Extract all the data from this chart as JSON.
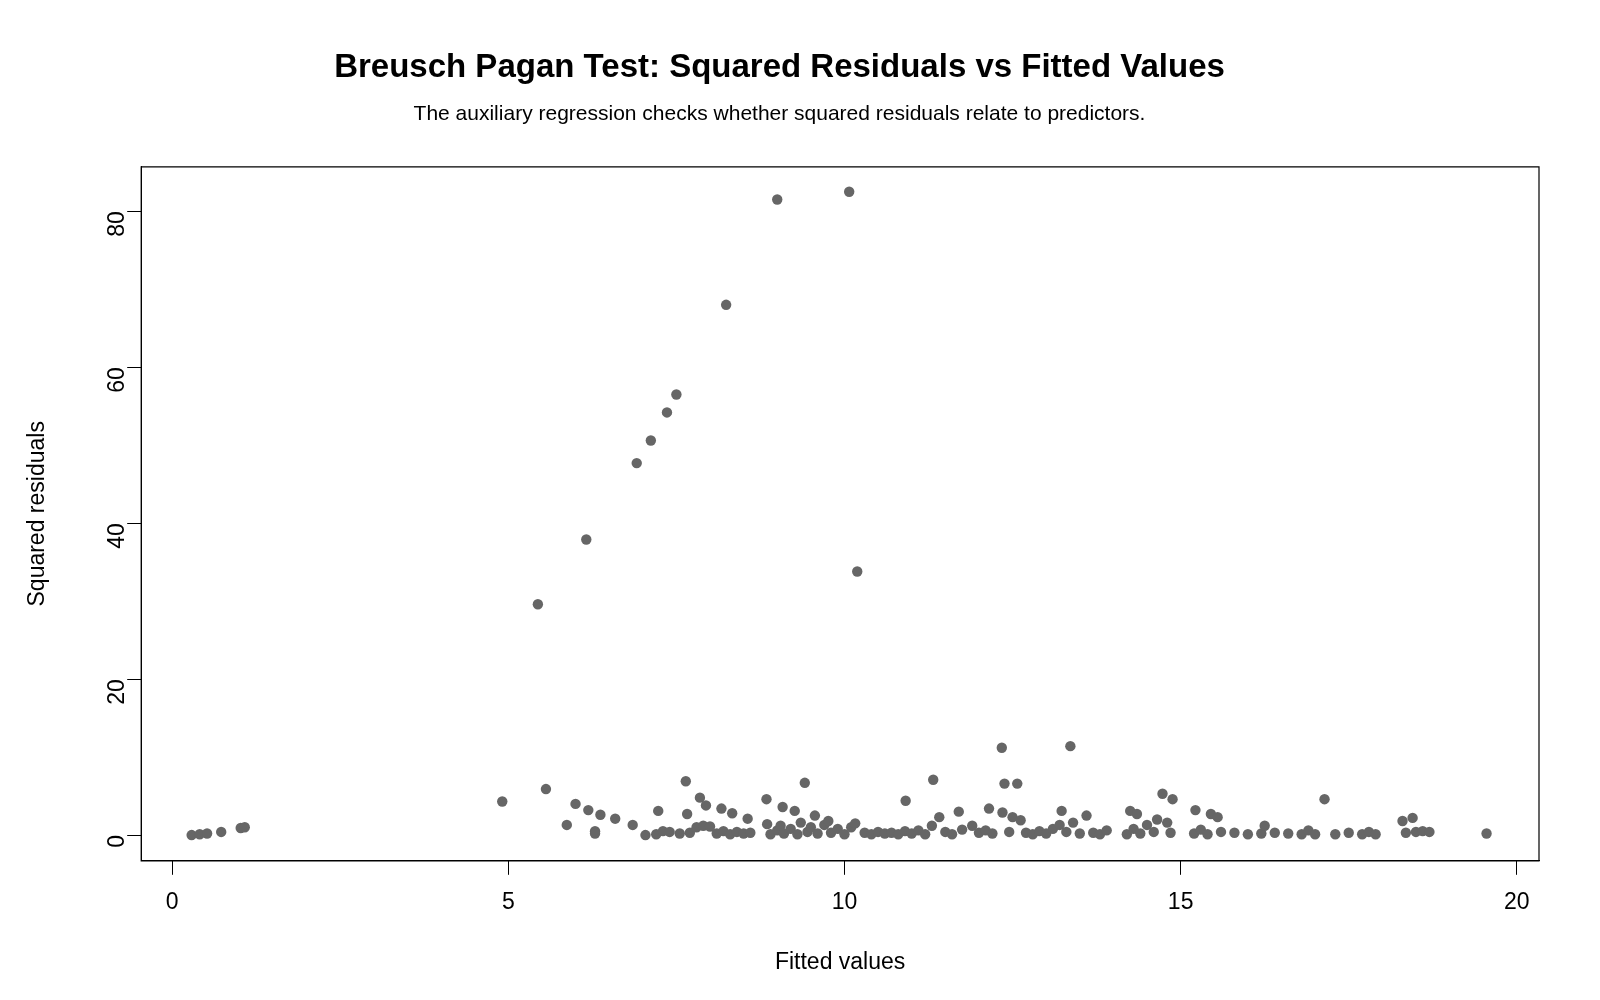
{
  "chart_data": {
    "type": "scatter",
    "title": "Breusch Pagan Test: Squared Residuals vs Fitted Values",
    "subtitle": "The auxiliary regression checks whether squared residuals relate to predictors.",
    "xlabel": "Fitted values",
    "ylabel": "Squared residuals",
    "xlim": [
      -0.46,
      20.33
    ],
    "xticks": [
      0,
      5,
      10,
      15,
      20
    ],
    "ylim": [
      -3.3,
      85.7
    ],
    "yticks": [
      0,
      20,
      40,
      60,
      80
    ],
    "grid": false,
    "legend": false,
    "marker": "circle",
    "series": [
      {
        "color": "#666666",
        "x": [
          0.29,
          0.41,
          0.52,
          0.73,
          1.02,
          1.08,
          4.91,
          5.44,
          5.56,
          5.87,
          6.0,
          6.16,
          6.19,
          6.29,
          6.29,
          6.37,
          6.59,
          6.85,
          6.91,
          7.04,
          7.12,
          7.23,
          7.2,
          7.3,
          7.36,
          7.4,
          7.5,
          7.55,
          7.64,
          7.66,
          7.7,
          7.8,
          7.85,
          7.9,
          7.94,
          8.0,
          8.1,
          8.17,
          8.2,
          8.24,
          8.3,
          8.33,
          8.4,
          8.5,
          8.56,
          8.6,
          8.84,
          8.85,
          8.9,
          9.0,
          9.0,
          9.05,
          9.08,
          9.1,
          9.2,
          9.26,
          9.3,
          9.35,
          9.41,
          9.45,
          9.5,
          9.56,
          9.6,
          9.7,
          9.76,
          9.8,
          9.9,
          10.0,
          10.07,
          10.1,
          10.16,
          10.19,
          10.3,
          10.4,
          10.5,
          10.6,
          10.7,
          10.8,
          10.91,
          10.9,
          11.0,
          11.1,
          11.2,
          11.3,
          11.32,
          11.41,
          11.5,
          11.6,
          11.7,
          11.75,
          11.9,
          12.0,
          12.1,
          12.15,
          12.2,
          12.34,
          12.35,
          12.38,
          12.45,
          12.5,
          12.57,
          12.62,
          12.7,
          12.8,
          12.9,
          13.0,
          13.1,
          13.2,
          13.23,
          13.3,
          13.36,
          13.4,
          13.5,
          13.6,
          13.7,
          13.8,
          13.9,
          14.2,
          14.25,
          14.3,
          14.35,
          14.4,
          14.5,
          14.6,
          14.65,
          14.73,
          14.8,
          14.85,
          14.88,
          15.2,
          15.22,
          15.3,
          15.4,
          15.45,
          15.55,
          15.6,
          15.8,
          16.0,
          16.2,
          16.25,
          16.4,
          16.6,
          16.8,
          16.9,
          17.0,
          17.14,
          17.3,
          17.5,
          17.7,
          17.8,
          17.9,
          18.3,
          18.35,
          18.45,
          18.5,
          18.6,
          18.7,
          19.55
        ],
        "values": [
          0,
          0.1,
          0.2,
          0.4,
          0.9,
          1.0,
          4.3,
          29.6,
          5.9,
          1.3,
          4.0,
          37.9,
          3.2,
          0.5,
          0.2,
          2.6,
          2.1,
          1.3,
          47.7,
          0,
          50.6,
          3.1,
          0.1,
          0.5,
          54.2,
          0.4,
          56.5,
          0.2,
          6.9,
          2.7,
          0.3,
          1.0,
          4.8,
          1.2,
          3.8,
          1.1,
          0.2,
          3.4,
          0.5,
          68.0,
          0.1,
          2.8,
          0.4,
          0.2,
          2.1,
          0.3,
          4.6,
          1.4,
          0.1,
          81.5,
          0.6,
          1.2,
          3.6,
          0.2,
          0.8,
          3.1,
          0.1,
          1.6,
          6.7,
          0.4,
          1.0,
          2.5,
          0.2,
          1.3,
          1.8,
          0.3,
          0.8,
          0.1,
          82.5,
          1.0,
          1.5,
          33.8,
          0.3,
          0.1,
          0.4,
          0.2,
          0.3,
          0.1,
          4.4,
          0.5,
          0.2,
          0.6,
          0.1,
          1.2,
          7.1,
          2.3,
          0.4,
          0.1,
          3.0,
          0.7,
          1.2,
          0.3,
          0.6,
          3.4,
          0.2,
          11.2,
          2.9,
          6.6,
          0.4,
          2.3,
          6.6,
          1.9,
          0.3,
          0.1,
          0.5,
          0.2,
          0.8,
          1.3,
          3.1,
          0.4,
          11.4,
          1.6,
          0.2,
          2.5,
          0.3,
          0.1,
          0.6,
          0.1,
          3.1,
          0.8,
          2.7,
          0.2,
          1.3,
          0.4,
          2.0,
          5.3,
          1.6,
          0.3,
          4.6,
          0.2,
          3.2,
          0.7,
          0.1,
          2.7,
          2.3,
          0.4,
          0.3,
          0.1,
          0.2,
          1.2,
          0.3,
          0.2,
          0.1,
          0.6,
          0.1,
          4.6,
          0.1,
          0.3,
          0.1,
          0.4,
          0.1,
          1.8,
          0.3,
          2.2,
          0.4,
          0.5,
          0.4,
          0.2
        ]
      }
    ]
  }
}
